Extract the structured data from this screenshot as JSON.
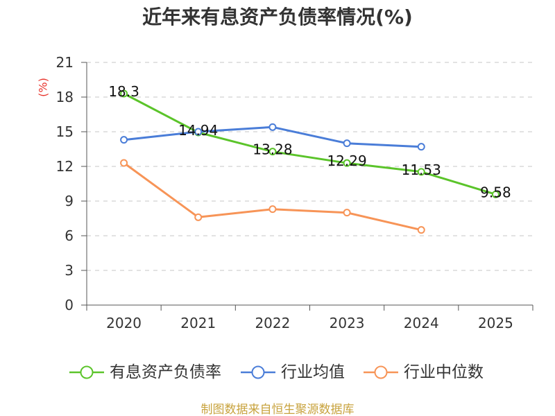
{
  "chart_data": {
    "type": "line",
    "title": "近年来有息资产负债率情况(%)",
    "xlabel": "",
    "ylabel": "(%)",
    "categories": [
      "2020",
      "2021",
      "2022",
      "2023",
      "2024",
      "2025"
    ],
    "ylim": [
      0,
      21
    ],
    "yticks": [
      0,
      3,
      6,
      9,
      12,
      15,
      18,
      21
    ],
    "grid": true,
    "legend": "bottom-center",
    "series": [
      {
        "name": "有息资产负债率",
        "color": "#5bc42a",
        "values": [
          18.3,
          14.94,
          13.28,
          12.29,
          11.53,
          9.58
        ],
        "labels": [
          "18.3",
          "14.94",
          "13.28",
          "12.29",
          "11.53",
          "9.58"
        ]
      },
      {
        "name": "行业均值",
        "color": "#4a7dd8",
        "values": [
          14.3,
          15.0,
          15.4,
          14.0,
          13.7,
          null
        ]
      },
      {
        "name": "行业中位数",
        "color": "#f79457",
        "values": [
          12.3,
          7.6,
          8.3,
          8.0,
          6.5,
          null
        ]
      }
    ]
  },
  "source": "制图数据来自恒生聚源数据库",
  "colors": {
    "ylabel": "#e8342c",
    "source": "#c8a33e"
  }
}
